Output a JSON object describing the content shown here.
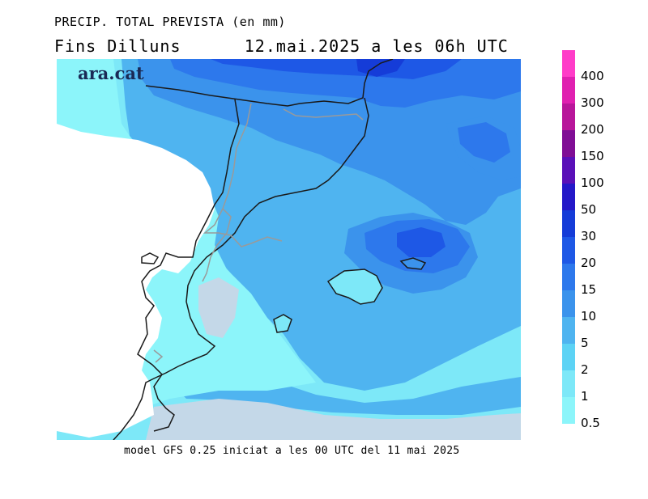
{
  "title_line1": "PRECIP. TOTAL PREVISTA (en mm)",
  "title_line2_left": "Fins Dilluns",
  "title_line2_right": "12.mai.2025 a les 06h UTC",
  "footer": "model GFS 0.25 iniciat a les 00 UTC del 11 mai 2025",
  "logo_text": "ara.cat",
  "legend": {
    "labels": [
      "0.5",
      "1",
      "2",
      "5",
      "10",
      "15",
      "20",
      "30",
      "50",
      "100",
      "150",
      "200",
      "300",
      "400"
    ],
    "colors": [
      "#8cf5fa",
      "#7de8f8",
      "#5dd3f5",
      "#4fb4f0",
      "#3b93ec",
      "#2d78ec",
      "#1e58e6",
      "#153cd8",
      "#2418c8",
      "#5a10b8",
      "#800e95",
      "#b8169a",
      "#e020b0",
      "#ff3cc8"
    ]
  },
  "colors": {
    "land": "#ffffff",
    "sea_light": "#c4d8e8",
    "coast": "#1a1a1a",
    "border": "#9a9a9a"
  }
}
